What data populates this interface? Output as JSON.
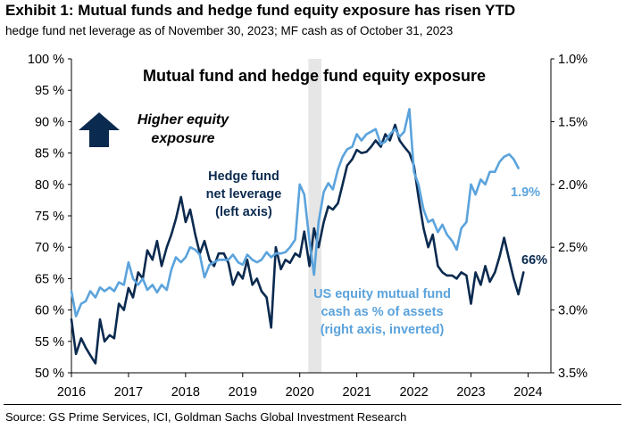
{
  "header": {
    "title": "Exhibit 1: Mutual funds and hedge fund equity exposure has risen YTD",
    "subtitle": "hedge fund net leverage as of November 30, 2023; MF cash as of October 31, 2023"
  },
  "footer": {
    "source": "Source: GS Prime Services, ICI, Goldman Sachs Global Investment Research"
  },
  "chart_data": {
    "type": "line",
    "title": "Mutual fund and hedge fund equity exposure",
    "x_ticks": [
      "2016",
      "2017",
      "2018",
      "2019",
      "2020",
      "2021",
      "2022",
      "2023",
      "2024"
    ],
    "xlim": [
      2016,
      2024.4
    ],
    "y_left": {
      "ticks": [
        "100 %",
        "95 %",
        "90 %",
        "85 %",
        "80 %",
        "75 %",
        "70 %",
        "65 %",
        "60 %",
        "55 %",
        "50 %"
      ],
      "range": [
        50,
        100
      ]
    },
    "y_right": {
      "ticks": [
        "1.0%",
        "1.5%",
        "2.0%",
        "2.5%",
        "3.0%",
        "3.5%"
      ],
      "range": [
        3.5,
        1.0
      ],
      "inverted": true
    },
    "colors": {
      "hedge_fund": "#0b2a4f",
      "mutual_fund": "#5ba3dc",
      "shade": "#e6e6e6",
      "arrow": "#0b2a4f"
    },
    "shaded_region": {
      "x_start": 2020.15,
      "x_end": 2020.38
    },
    "annotations": {
      "higher_line1": "Higher equity",
      "higher_line2": "exposure",
      "hf_line1": "Hedge fund",
      "hf_line2": "net leverage",
      "hf_line3": "(left axis)",
      "mf_line1": "US equity mutual fund",
      "mf_line2": "cash as % of assets",
      "mf_line3": "(right axis, inverted)",
      "hf_last_label": "66%",
      "mf_last_label": "1.9%"
    },
    "series": [
      {
        "name": "Hedge fund net leverage",
        "axis": "left",
        "x": [
          2016.0,
          2016.08,
          2016.17,
          2016.25,
          2016.33,
          2016.42,
          2016.5,
          2016.58,
          2016.67,
          2016.75,
          2016.83,
          2016.92,
          2017.0,
          2017.08,
          2017.17,
          2017.25,
          2017.33,
          2017.42,
          2017.5,
          2017.58,
          2017.67,
          2017.75,
          2017.83,
          2017.92,
          2018.0,
          2018.08,
          2018.17,
          2018.25,
          2018.33,
          2018.42,
          2018.5,
          2018.58,
          2018.67,
          2018.75,
          2018.83,
          2018.92,
          2019.0,
          2019.08,
          2019.17,
          2019.25,
          2019.33,
          2019.42,
          2019.5,
          2019.58,
          2019.67,
          2019.75,
          2019.83,
          2019.92,
          2020.0,
          2020.08,
          2020.17,
          2020.25,
          2020.33,
          2020.42,
          2020.5,
          2020.58,
          2020.67,
          2020.75,
          2020.83,
          2020.92,
          2021.0,
          2021.08,
          2021.17,
          2021.25,
          2021.33,
          2021.42,
          2021.5,
          2021.58,
          2021.67,
          2021.75,
          2021.83,
          2021.92,
          2022.0,
          2022.08,
          2022.17,
          2022.25,
          2022.33,
          2022.42,
          2022.5,
          2022.58,
          2022.67,
          2022.75,
          2022.83,
          2022.92,
          2023.0,
          2023.08,
          2023.17,
          2023.25,
          2023.33,
          2023.42,
          2023.5,
          2023.58,
          2023.67,
          2023.75,
          2023.83,
          2023.92
        ],
        "values": [
          58.5,
          53,
          55.5,
          54,
          52.8,
          51.5,
          58.5,
          55,
          56,
          55.5,
          61,
          60,
          63.5,
          62,
          66,
          65,
          69.5,
          68,
          71,
          67,
          70,
          72,
          74.5,
          78,
          74,
          76,
          72,
          69,
          71,
          68,
          67,
          69,
          69,
          67.5,
          64,
          66,
          65,
          68,
          64,
          65,
          63,
          62,
          57.2,
          70,
          66.5,
          68,
          67.5,
          69,
          68.5,
          72.5,
          67,
          73,
          70,
          74,
          76.5,
          76,
          77,
          80,
          83,
          84,
          85.5,
          85,
          85.2,
          86,
          87,
          86,
          88,
          87,
          89.5,
          87,
          86,
          85,
          83,
          78,
          73,
          70,
          72,
          67,
          66,
          65.5,
          65.5,
          65,
          66,
          65.5,
          61,
          66,
          64,
          67,
          64.5,
          66,
          68.5,
          71.5,
          68,
          65,
          62.5,
          66
        ]
      },
      {
        "name": "US equity mutual fund cash as % of assets",
        "axis": "right",
        "x": [
          2016.0,
          2016.08,
          2016.17,
          2016.25,
          2016.33,
          2016.42,
          2016.5,
          2016.58,
          2016.67,
          2016.75,
          2016.83,
          2016.92,
          2017.0,
          2017.08,
          2017.17,
          2017.25,
          2017.33,
          2017.42,
          2017.5,
          2017.58,
          2017.67,
          2017.75,
          2017.83,
          2017.92,
          2018.0,
          2018.08,
          2018.17,
          2018.25,
          2018.33,
          2018.42,
          2018.5,
          2018.58,
          2018.67,
          2018.75,
          2018.83,
          2018.92,
          2019.0,
          2019.08,
          2019.17,
          2019.25,
          2019.33,
          2019.42,
          2019.5,
          2019.58,
          2019.67,
          2019.75,
          2019.83,
          2019.92,
          2020.0,
          2020.08,
          2020.17,
          2020.25,
          2020.33,
          2020.42,
          2020.5,
          2020.58,
          2020.67,
          2020.75,
          2020.83,
          2020.92,
          2021.0,
          2021.08,
          2021.17,
          2021.25,
          2021.33,
          2021.42,
          2021.5,
          2021.58,
          2021.67,
          2021.75,
          2021.83,
          2021.92,
          2022.0,
          2022.08,
          2022.17,
          2022.25,
          2022.33,
          2022.42,
          2022.5,
          2022.58,
          2022.67,
          2022.75,
          2022.83,
          2022.92,
          2023.0,
          2023.08,
          2023.17,
          2023.25,
          2023.33,
          2023.42,
          2023.5,
          2023.58,
          2023.67,
          2023.75,
          2023.83
        ],
        "values": [
          2.85,
          3.05,
          2.95,
          2.93,
          2.85,
          2.9,
          2.82,
          2.85,
          2.82,
          2.85,
          2.78,
          2.8,
          2.62,
          2.75,
          2.8,
          2.75,
          2.84,
          2.8,
          2.86,
          2.8,
          2.84,
          2.68,
          2.58,
          2.62,
          2.58,
          2.5,
          2.52,
          2.56,
          2.74,
          2.64,
          2.62,
          2.6,
          2.6,
          2.6,
          2.56,
          2.62,
          2.64,
          2.56,
          2.6,
          2.62,
          2.6,
          2.54,
          2.58,
          2.55,
          2.55,
          2.54,
          2.5,
          2.44,
          2.0,
          2.08,
          2.45,
          2.72,
          2.3,
          2.06,
          1.99,
          2.04,
          1.88,
          1.78,
          1.72,
          1.7,
          1.6,
          1.65,
          1.6,
          1.58,
          1.56,
          1.68,
          1.66,
          1.6,
          1.56,
          1.62,
          1.58,
          1.4,
          1.9,
          2.0,
          2.2,
          2.3,
          2.28,
          2.38,
          2.32,
          2.4,
          2.45,
          2.52,
          2.35,
          2.3,
          2.0,
          2.08,
          1.96,
          2.0,
          1.9,
          1.9,
          1.82,
          1.78,
          1.76,
          1.8,
          1.87
        ]
      }
    ]
  }
}
